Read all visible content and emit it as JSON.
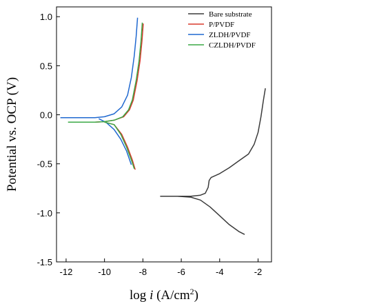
{
  "chart_data": {
    "type": "line",
    "xlabel": {
      "prefix": "log ",
      "italic": "i",
      "unit_base": " (A/cm",
      "unit_sup": "2",
      "unit_close": ")"
    },
    "ylabel": "Potential vs. OCP (V)",
    "xlim": [
      -12.5,
      -1.3
    ],
    "ylim": [
      -1.5,
      1.1
    ],
    "x_ticks": [
      -12,
      -10,
      -8,
      -6,
      -4,
      -2
    ],
    "x_tick_labels": [
      "-12",
      "-10",
      "-8",
      "-6",
      "-4",
      "-2"
    ],
    "y_ticks": [
      1.0,
      0.5,
      0.0,
      -0.5,
      -1.0,
      -1.5
    ],
    "y_tick_labels": [
      "1.0",
      "0.5",
      "0.0",
      "-0.5",
      "-1.0",
      "-1.5"
    ],
    "grid": false,
    "legend_position": "top-right",
    "series": [
      {
        "name": "Bare substrate",
        "color": "#3a3a3a",
        "anodic": [
          [
            -7.1,
            -0.83
          ],
          [
            -5.5,
            -0.83
          ],
          [
            -5.0,
            -0.82
          ],
          [
            -4.75,
            -0.8
          ],
          [
            -4.6,
            -0.74
          ],
          [
            -4.55,
            -0.67
          ],
          [
            -4.45,
            -0.64
          ],
          [
            -4.0,
            -0.6
          ],
          [
            -3.5,
            -0.54
          ],
          [
            -3.0,
            -0.47
          ],
          [
            -2.5,
            -0.4
          ],
          [
            -2.2,
            -0.3
          ],
          [
            -2.0,
            -0.18
          ],
          [
            -1.85,
            -0.02
          ],
          [
            -1.72,
            0.15
          ],
          [
            -1.62,
            0.27
          ]
        ],
        "cathodic": [
          [
            -6.2,
            -0.83
          ],
          [
            -5.5,
            -0.84
          ],
          [
            -5.0,
            -0.87
          ],
          [
            -4.5,
            -0.94
          ],
          [
            -4.0,
            -1.03
          ],
          [
            -3.5,
            -1.12
          ],
          [
            -3.0,
            -1.19
          ],
          [
            -2.7,
            -1.22
          ]
        ]
      },
      {
        "name": "P/PVDF",
        "color": "#d9382c",
        "anodic": [
          [
            -11.8,
            -0.075
          ],
          [
            -10.5,
            -0.075
          ],
          [
            -10.0,
            -0.07
          ],
          [
            -9.5,
            -0.055
          ],
          [
            -9.0,
            -0.02
          ],
          [
            -8.7,
            0.05
          ],
          [
            -8.5,
            0.15
          ],
          [
            -8.3,
            0.35
          ],
          [
            -8.15,
            0.55
          ],
          [
            -8.05,
            0.75
          ],
          [
            -7.98,
            0.93
          ]
        ],
        "cathodic": [
          [
            -10.0,
            -0.075
          ],
          [
            -9.5,
            -0.1
          ],
          [
            -9.1,
            -0.2
          ],
          [
            -8.8,
            -0.33
          ],
          [
            -8.55,
            -0.46
          ],
          [
            -8.4,
            -0.56
          ]
        ]
      },
      {
        "name": "ZLDH/PVDF",
        "color": "#1f68d0",
        "anodic": [
          [
            -12.3,
            -0.03
          ],
          [
            -10.5,
            -0.03
          ],
          [
            -10.0,
            -0.02
          ],
          [
            -9.5,
            0.01
          ],
          [
            -9.1,
            0.08
          ],
          [
            -8.8,
            0.2
          ],
          [
            -8.6,
            0.38
          ],
          [
            -8.45,
            0.6
          ],
          [
            -8.35,
            0.8
          ],
          [
            -8.28,
            0.99
          ]
        ],
        "cathodic": [
          [
            -10.3,
            -0.04
          ],
          [
            -9.9,
            -0.08
          ],
          [
            -9.5,
            -0.15
          ],
          [
            -9.15,
            -0.25
          ],
          [
            -8.85,
            -0.37
          ],
          [
            -8.6,
            -0.51
          ]
        ]
      },
      {
        "name": "CZLDH/PVDF",
        "color": "#3aa845",
        "anodic": [
          [
            -11.9,
            -0.075
          ],
          [
            -10.5,
            -0.075
          ],
          [
            -10.0,
            -0.07
          ],
          [
            -9.5,
            -0.055
          ],
          [
            -9.05,
            -0.02
          ],
          [
            -8.75,
            0.05
          ],
          [
            -8.55,
            0.15
          ],
          [
            -8.35,
            0.35
          ],
          [
            -8.2,
            0.55
          ],
          [
            -8.1,
            0.75
          ],
          [
            -8.03,
            0.94
          ]
        ],
        "cathodic": [
          [
            -10.0,
            -0.075
          ],
          [
            -9.5,
            -0.1
          ],
          [
            -9.15,
            -0.2
          ],
          [
            -8.85,
            -0.33
          ],
          [
            -8.6,
            -0.46
          ],
          [
            -8.45,
            -0.55
          ]
        ]
      }
    ]
  }
}
